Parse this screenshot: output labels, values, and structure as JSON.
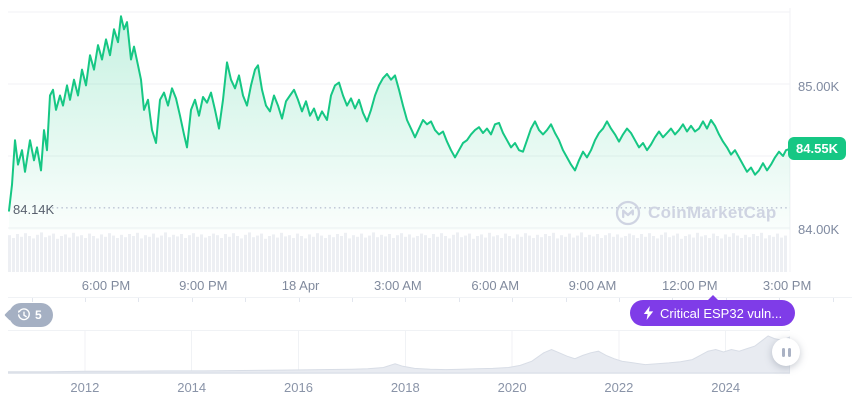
{
  "colors": {
    "accent_green": "#16c784",
    "alert_purple": "#7f3ce8",
    "badge_gray": "#a5b0c3",
    "gridline": "#f0f2f5",
    "axis_label": "#808a9d",
    "volume_bar": "#edeff3",
    "mini_area_fill": "#e8ebf1",
    "mini_area_stroke": "#d8dde6",
    "watermark": "#cfd4e2",
    "dotted_low_line": "#bac2d2"
  },
  "main_chart": {
    "y_axis_top": "85.00K",
    "y_axis_bottom": "84.00K",
    "current_price": "84.55K",
    "low_label": "84.14K"
  },
  "watermark": {
    "text": "CoinMarketCap"
  },
  "history_badge": {
    "count": "5"
  },
  "alert_pill": {
    "label": "Critical ESP32 vuln..."
  },
  "chart_data": [
    {
      "type": "area",
      "title": "Intraday price (USD thousands)",
      "legend": "none",
      "grid": "on",
      "x_axis_labels": [
        "6:00 PM",
        "9:00 PM",
        "18 Apr",
        "3:00 AM",
        "6:00 AM",
        "9:00 AM",
        "12:00 PM",
        "3:00 PM"
      ],
      "y_gridline_values": [
        85.5,
        85.0,
        84.5,
        84.0
      ],
      "y_tick_labels": [
        "85.00K",
        "84.00K"
      ],
      "ylim": [
        83.85,
        85.55
      ],
      "current_price": 84.55,
      "low_price": 84.14,
      "points": [
        [
          9,
          84.12
        ],
        [
          12,
          84.3
        ],
        [
          15,
          84.61
        ],
        [
          18,
          84.44
        ],
        [
          22,
          84.54
        ],
        [
          25,
          84.39
        ],
        [
          30,
          84.61
        ],
        [
          34,
          84.47
        ],
        [
          37,
          84.56
        ],
        [
          41,
          84.4
        ],
        [
          44,
          84.68
        ],
        [
          47,
          84.54
        ],
        [
          50,
          84.92
        ],
        [
          53,
          84.96
        ],
        [
          56,
          84.82
        ],
        [
          60,
          84.92
        ],
        [
          63,
          84.85
        ],
        [
          67,
          84.99
        ],
        [
          70,
          84.89
        ],
        [
          74,
          85.03
        ],
        [
          78,
          84.92
        ],
        [
          82,
          85.1
        ],
        [
          86,
          84.99
        ],
        [
          90,
          85.2
        ],
        [
          94,
          85.1
        ],
        [
          98,
          85.27
        ],
        [
          102,
          85.17
        ],
        [
          106,
          85.31
        ],
        [
          110,
          85.2
        ],
        [
          114,
          85.38
        ],
        [
          118,
          85.29
        ],
        [
          121,
          85.47
        ],
        [
          124,
          85.38
        ],
        [
          127,
          85.43
        ],
        [
          131,
          85.17
        ],
        [
          134,
          85.26
        ],
        [
          138,
          85.13
        ],
        [
          141,
          85.03
        ],
        [
          144,
          84.82
        ],
        [
          148,
          84.89
        ],
        [
          152,
          84.68
        ],
        [
          156,
          84.59
        ],
        [
          160,
          84.89
        ],
        [
          164,
          84.94
        ],
        [
          168,
          84.85
        ],
        [
          172,
          84.97
        ],
        [
          176,
          84.9
        ],
        [
          180,
          84.78
        ],
        [
          184,
          84.65
        ],
        [
          187,
          84.56
        ],
        [
          191,
          84.82
        ],
        [
          195,
          84.89
        ],
        [
          199,
          84.78
        ],
        [
          203,
          84.91
        ],
        [
          207,
          84.87
        ],
        [
          211,
          84.94
        ],
        [
          215,
          84.82
        ],
        [
          219,
          84.69
        ],
        [
          223,
          84.89
        ],
        [
          227,
          85.15
        ],
        [
          231,
          85.03
        ],
        [
          235,
          84.97
        ],
        [
          239,
          85.06
        ],
        [
          243,
          84.92
        ],
        [
          247,
          84.85
        ],
        [
          251,
          84.99
        ],
        [
          255,
          85.1
        ],
        [
          258,
          85.13
        ],
        [
          262,
          84.96
        ],
        [
          266,
          84.85
        ],
        [
          270,
          84.81
        ],
        [
          274,
          84.92
        ],
        [
          278,
          84.85
        ],
        [
          282,
          84.76
        ],
        [
          286,
          84.88
        ],
        [
          290,
          84.92
        ],
        [
          294,
          84.96
        ],
        [
          298,
          84.89
        ],
        [
          302,
          84.81
        ],
        [
          306,
          84.88
        ],
        [
          310,
          84.78
        ],
        [
          314,
          84.83
        ],
        [
          318,
          84.75
        ],
        [
          322,
          84.81
        ],
        [
          327,
          84.75
        ],
        [
          331,
          84.92
        ],
        [
          335,
          84.99
        ],
        [
          339,
          85.01
        ],
        [
          343,
          84.92
        ],
        [
          347,
          84.85
        ],
        [
          351,
          84.9
        ],
        [
          355,
          84.83
        ],
        [
          359,
          84.89
        ],
        [
          363,
          84.8
        ],
        [
          367,
          84.74
        ],
        [
          371,
          84.82
        ],
        [
          375,
          84.92
        ],
        [
          379,
          84.99
        ],
        [
          383,
          85.04
        ],
        [
          387,
          85.07
        ],
        [
          391,
          85.03
        ],
        [
          395,
          85.06
        ],
        [
          399,
          84.96
        ],
        [
          403,
          84.85
        ],
        [
          407,
          84.75
        ],
        [
          411,
          84.69
        ],
        [
          415,
          84.63
        ],
        [
          419,
          84.69
        ],
        [
          423,
          84.75
        ],
        [
          427,
          84.72
        ],
        [
          431,
          84.74
        ],
        [
          435,
          84.68
        ],
        [
          439,
          84.65
        ],
        [
          443,
          84.67
        ],
        [
          447,
          84.6
        ],
        [
          451,
          84.54
        ],
        [
          455,
          84.49
        ],
        [
          459,
          84.54
        ],
        [
          463,
          84.59
        ],
        [
          467,
          84.61
        ],
        [
          471,
          84.65
        ],
        [
          475,
          84.68
        ],
        [
          479,
          84.7
        ],
        [
          483,
          84.66
        ],
        [
          487,
          84.69
        ],
        [
          491,
          84.65
        ],
        [
          495,
          84.72
        ],
        [
          499,
          84.73
        ],
        [
          503,
          84.66
        ],
        [
          507,
          84.61
        ],
        [
          511,
          84.56
        ],
        [
          515,
          84.59
        ],
        [
          519,
          84.54
        ],
        [
          523,
          84.53
        ],
        [
          527,
          84.61
        ],
        [
          531,
          84.69
        ],
        [
          535,
          84.74
        ],
        [
          539,
          84.68
        ],
        [
          543,
          84.65
        ],
        [
          547,
          84.68
        ],
        [
          551,
          84.72
        ],
        [
          555,
          84.66
        ],
        [
          559,
          84.61
        ],
        [
          563,
          84.54
        ],
        [
          567,
          84.49
        ],
        [
          571,
          84.44
        ],
        [
          575,
          84.4
        ],
        [
          579,
          84.47
        ],
        [
          583,
          84.53
        ],
        [
          587,
          84.49
        ],
        [
          591,
          84.54
        ],
        [
          595,
          84.61
        ],
        [
          599,
          84.66
        ],
        [
          603,
          84.69
        ],
        [
          607,
          84.74
        ],
        [
          611,
          84.69
        ],
        [
          615,
          84.65
        ],
        [
          619,
          84.6
        ],
        [
          623,
          84.65
        ],
        [
          627,
          84.69
        ],
        [
          631,
          84.66
        ],
        [
          635,
          84.61
        ],
        [
          639,
          84.56
        ],
        [
          643,
          84.59
        ],
        [
          647,
          84.54
        ],
        [
          651,
          84.58
        ],
        [
          655,
          84.63
        ],
        [
          659,
          84.67
        ],
        [
          663,
          84.63
        ],
        [
          667,
          84.66
        ],
        [
          671,
          84.69
        ],
        [
          675,
          84.65
        ],
        [
          679,
          84.68
        ],
        [
          683,
          84.72
        ],
        [
          687,
          84.67
        ],
        [
          691,
          84.71
        ],
        [
          695,
          84.67
        ],
        [
          699,
          84.69
        ],
        [
          703,
          84.74
        ],
        [
          707,
          84.69
        ],
        [
          711,
          84.75
        ],
        [
          715,
          84.71
        ],
        [
          719,
          84.65
        ],
        [
          723,
          84.6
        ],
        [
          727,
          84.56
        ],
        [
          731,
          84.51
        ],
        [
          735,
          84.54
        ],
        [
          739,
          84.49
        ],
        [
          743,
          84.44
        ],
        [
          747,
          84.39
        ],
        [
          751,
          84.42
        ],
        [
          755,
          84.37
        ],
        [
          759,
          84.4
        ],
        [
          763,
          84.45
        ],
        [
          767,
          84.4
        ],
        [
          771,
          84.44
        ],
        [
          775,
          84.49
        ],
        [
          779,
          84.53
        ],
        [
          783,
          84.5
        ],
        [
          786,
          84.54
        ],
        [
          790,
          84.55
        ]
      ],
      "volume_profile": [
        0.92,
        0.85,
        0.95,
        0.88,
        0.97,
        0.9,
        0.84,
        0.93,
        0.99,
        0.87,
        0.91,
        0.96,
        0.83,
        0.9,
        0.94,
        0.86,
        0.98,
        0.89,
        0.92,
        0.85,
        0.96,
        0.9,
        0.84,
        0.94,
        0.88,
        0.97,
        0.91,
        0.85,
        0.93,
        0.87,
        0.95,
        0.9,
        0.98,
        0.84,
        0.92,
        0.88,
        0.96,
        0.86,
        0.91,
        0.99,
        0.87,
        0.93,
        0.89,
        0.95,
        0.85,
        0.92,
        0.97,
        0.88,
        0.94,
        0.86,
        0.9,
        0.96
      ]
    },
    {
      "type": "area",
      "title": "All-time overview (range selector)",
      "x_axis_labels": [
        "2012",
        "2014",
        "2016",
        "2018",
        "2020",
        "2022",
        "2024"
      ],
      "points": [
        [
          0,
          0.03
        ],
        [
          0.05,
          0.03
        ],
        [
          0.1,
          0.04
        ],
        [
          0.15,
          0.04
        ],
        [
          0.2,
          0.05
        ],
        [
          0.25,
          0.05
        ],
        [
          0.3,
          0.06
        ],
        [
          0.35,
          0.07
        ],
        [
          0.4,
          0.08
        ],
        [
          0.44,
          0.09
        ],
        [
          0.46,
          0.1
        ],
        [
          0.48,
          0.13
        ],
        [
          0.495,
          0.22
        ],
        [
          0.505,
          0.16
        ],
        [
          0.52,
          0.11
        ],
        [
          0.54,
          0.09
        ],
        [
          0.56,
          0.08
        ],
        [
          0.58,
          0.09
        ],
        [
          0.6,
          0.1
        ],
        [
          0.62,
          0.11
        ],
        [
          0.64,
          0.13
        ],
        [
          0.655,
          0.18
        ],
        [
          0.67,
          0.28
        ],
        [
          0.685,
          0.48
        ],
        [
          0.695,
          0.56
        ],
        [
          0.705,
          0.48
        ],
        [
          0.715,
          0.4
        ],
        [
          0.725,
          0.34
        ],
        [
          0.735,
          0.42
        ],
        [
          0.745,
          0.48
        ],
        [
          0.755,
          0.52
        ],
        [
          0.765,
          0.42
        ],
        [
          0.775,
          0.34
        ],
        [
          0.785,
          0.28
        ],
        [
          0.8,
          0.24
        ],
        [
          0.815,
          0.2
        ],
        [
          0.83,
          0.22
        ],
        [
          0.845,
          0.24
        ],
        [
          0.86,
          0.27
        ],
        [
          0.875,
          0.32
        ],
        [
          0.885,
          0.42
        ],
        [
          0.895,
          0.52
        ],
        [
          0.905,
          0.56
        ],
        [
          0.915,
          0.5
        ],
        [
          0.925,
          0.56
        ],
        [
          0.935,
          0.52
        ],
        [
          0.945,
          0.58
        ],
        [
          0.955,
          0.64
        ],
        [
          0.965,
          0.78
        ],
        [
          0.972,
          0.88
        ],
        [
          0.98,
          0.82
        ],
        [
          0.99,
          0.78
        ],
        [
          1,
          0.86
        ]
      ]
    }
  ]
}
